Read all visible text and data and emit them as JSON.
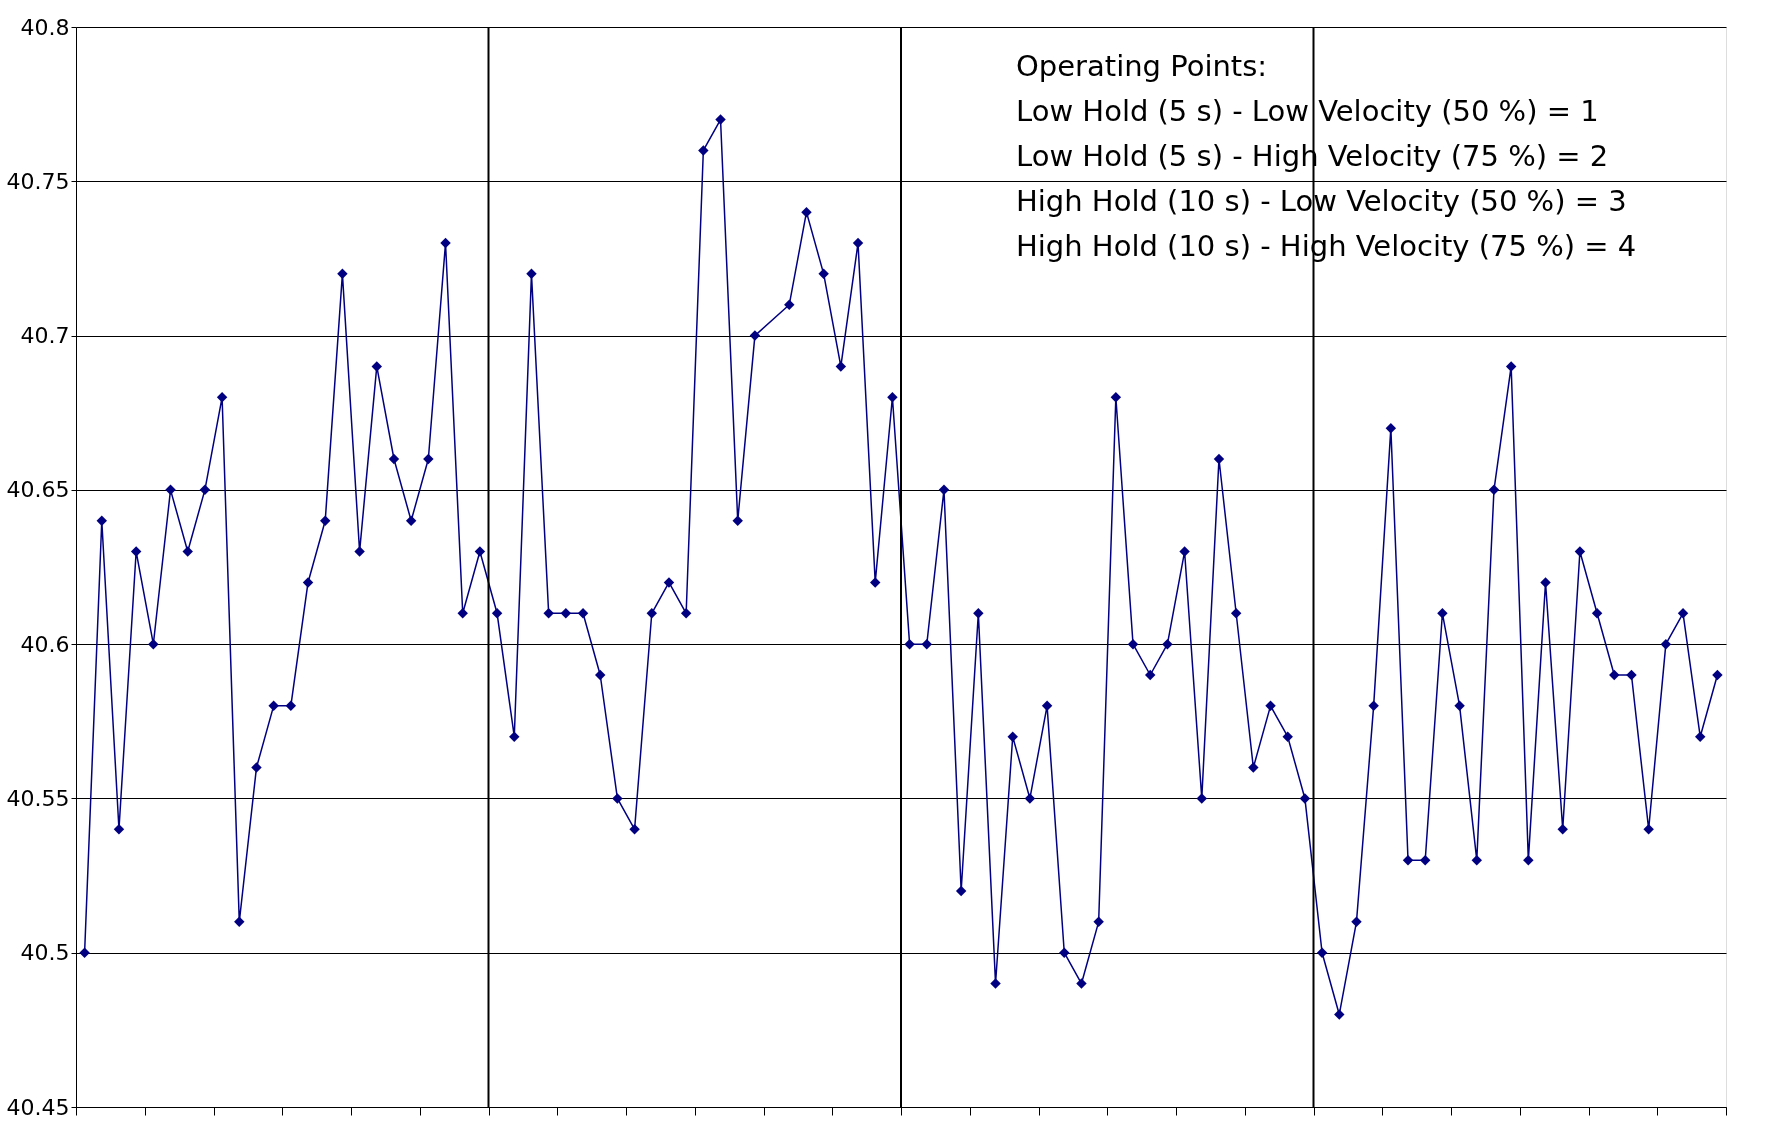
{
  "chart_data": {
    "type": "line",
    "categories": [
      null,
      null,
      null,
      null,
      null,
      null,
      null,
      null,
      null,
      null,
      null,
      null,
      null,
      null,
      null,
      null,
      null,
      null,
      null,
      null,
      null,
      null,
      null,
      null,
      null,
      null,
      null,
      null,
      null,
      null,
      null,
      null,
      null,
      null,
      null,
      null,
      null,
      null,
      null,
      null,
      null,
      null,
      null,
      null,
      null,
      null,
      null,
      null,
      null,
      null,
      null,
      null,
      null,
      null,
      null,
      null,
      null,
      null,
      null,
      null,
      null,
      null,
      null,
      null,
      null,
      null,
      null,
      null,
      null,
      null,
      null,
      null,
      null,
      null,
      null,
      null,
      null,
      null,
      null,
      null,
      null,
      null,
      null,
      null,
      null,
      null,
      null,
      null,
      null,
      null,
      null,
      null,
      null,
      null,
      null,
      null
    ],
    "series": [
      {
        "color": "#000080",
        "values": [
          40.5,
          40.64,
          40.54,
          40.63,
          40.6,
          40.65,
          40.63,
          40.65,
          40.68,
          40.51,
          40.56,
          40.58,
          40.58,
          40.62,
          40.64,
          40.72,
          40.63,
          40.69,
          40.66,
          40.64,
          40.66,
          40.73,
          40.61,
          40.63,
          40.61,
          40.57,
          40.72,
          40.61,
          40.61,
          40.61,
          40.59,
          40.55,
          40.54,
          40.61,
          40.62,
          40.61,
          40.76,
          40.77,
          40.64,
          40.7,
          null,
          40.71,
          40.74,
          40.72,
          40.69,
          40.73,
          40.62,
          40.68,
          40.6,
          40.6,
          40.65,
          40.52,
          40.61,
          40.49,
          40.57,
          40.55,
          40.58,
          40.5,
          40.49,
          40.51,
          40.68,
          40.6,
          40.59,
          40.6,
          40.63,
          40.55,
          40.66,
          40.61,
          40.56,
          40.58,
          40.57,
          40.55,
          40.5,
          40.48,
          40.51,
          40.58,
          40.67,
          40.53,
          40.53,
          40.61,
          40.58,
          40.53,
          40.65,
          40.69,
          40.53,
          40.62,
          40.54,
          40.63,
          40.61,
          40.59,
          40.59,
          40.54,
          40.6,
          40.61,
          40.57,
          40.59
        ]
      }
    ],
    "ylim": [
      40.45,
      40.8
    ],
    "yticks": [
      40.45,
      40.5,
      40.55,
      40.6,
      40.65,
      40.7,
      40.75,
      40.8
    ],
    "tick_labels": "y",
    "grid": "y",
    "marker": "diamond",
    "line_style": "solid",
    "annotations": [
      "Operating Points:",
      "Low Hold (5 s) - Low Velocity (50 %) = 1",
      "Low Hold (5 s) - High Velocity (75 %) = 2",
      "High Hold (10 s) - Low Velocity (50 %) = 3",
      "High Hold (10 s)  - High Velocity (75 %) = 4"
    ]
  }
}
